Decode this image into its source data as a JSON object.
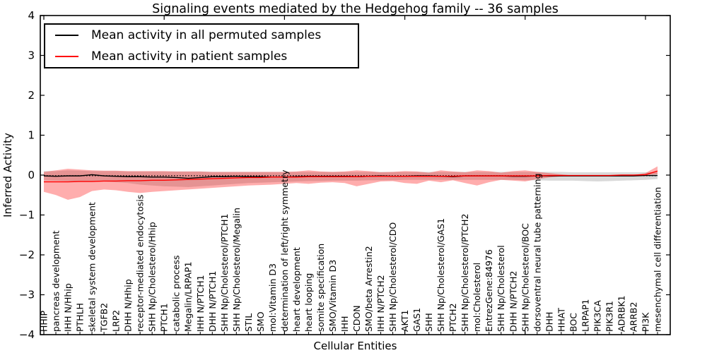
{
  "title": "Signaling events mediated by the Hedgehog family -- 36 samples",
  "legend": {
    "position": "upper left",
    "items": [
      {
        "label": "Mean activity in all permuted samples",
        "color": "#000000"
      },
      {
        "label": "Mean activity in patient samples",
        "color": "#ff0000"
      }
    ]
  },
  "colors": {
    "permuted_line": "#000000",
    "patient_line": "#ff0000",
    "permuted_band": "rgba(128,128,128,0.30)",
    "patient_band": "rgba(255,0,0,0.32)",
    "frame": "#000000"
  },
  "chart_data": {
    "type": "line",
    "title": "Signaling events mediated by the Hedgehog family -- 36 samples",
    "xlabel": "Cellular Entities",
    "ylabel": "Inferred Activity",
    "ylim": [
      -4,
      4
    ],
    "yticks": [
      4,
      3,
      2,
      1,
      0,
      -1,
      -2,
      -3,
      -4
    ],
    "grid": false,
    "legend_position": "upper left",
    "categories": [
      "HHIP",
      "pancreas development",
      "IHH N/Hhip",
      "PTHLH",
      "skeletal system development",
      "TGFB2",
      "LRP2",
      "DHH N/Hhip",
      "receptor-mediated endocytosis",
      "SHH Np/Cholesterol/Hhip",
      "PTCH1",
      "catabolic process",
      "Megalin/LRPAP1",
      "IHH N/PTCH1",
      "DHH N/PTCH1",
      "SHH Np/Cholesterol/PTCH1",
      "SHH Np/Cholesterol/Megalin",
      "STIL",
      "SMO",
      "mol:Vitamin D3",
      "determination of left/right symmetry",
      "heart development",
      "heart looping",
      "somite specification",
      "SMO/Vitamin D3",
      "IHH",
      "CDON",
      "SMO/beta Arrestin2",
      "IHH N/PTCH2",
      "SHH Np/Cholesterol/CDO",
      "AKT1",
      "GAS1",
      "SHH",
      "SHH Np/Cholesterol/GAS1",
      "PTCH2",
      "SHH Np/Cholesterol/PTCH2",
      "mol:Cholesterol",
      "EntrezGene:84976",
      "SHH Np/Cholesterol",
      "DHH N/PTCH2",
      "SHH Np/Cholesterol/BOC",
      "dorsoventral neural tube patterning",
      "DHH",
      "HHAT",
      "BOC",
      "LRPAP1",
      "PIK3CA",
      "PIK3R1",
      "ADRBK1",
      "ARRB2",
      "PI3K",
      "mesenchymal cell differentiation"
    ],
    "series": [
      {
        "name": "Mean activity in all permuted samples",
        "color": "#000000",
        "style": "solid",
        "values": [
          -0.02,
          -0.03,
          -0.02,
          -0.02,
          0.01,
          -0.02,
          -0.03,
          -0.04,
          -0.04,
          -0.05,
          -0.05,
          -0.06,
          -0.08,
          -0.06,
          -0.04,
          -0.04,
          -0.03,
          -0.04,
          -0.04,
          -0.05,
          -0.05,
          -0.04,
          -0.03,
          -0.03,
          -0.03,
          -0.03,
          -0.04,
          -0.03,
          -0.02,
          -0.03,
          -0.03,
          -0.02,
          -0.02,
          -0.03,
          -0.04,
          -0.02,
          -0.02,
          -0.02,
          -0.02,
          -0.03,
          -0.03,
          -0.02,
          -0.02,
          -0.02,
          -0.02,
          -0.02,
          -0.02,
          -0.02,
          -0.02,
          -0.02,
          -0.01,
          -0.01
        ]
      },
      {
        "name": "permuted mean dotted overlay",
        "color": "#000000",
        "style": "dotted",
        "constant": -0.015
      },
      {
        "name": "Mean activity in patient samples",
        "color": "#ff0000",
        "style": "solid",
        "values": [
          -0.17,
          -0.17,
          -0.17,
          -0.16,
          -0.16,
          -0.15,
          -0.15,
          -0.14,
          -0.14,
          -0.13,
          -0.13,
          -0.12,
          -0.11,
          -0.1,
          -0.09,
          -0.08,
          -0.07,
          -0.06,
          -0.06,
          -0.05,
          -0.05,
          -0.05,
          -0.04,
          -0.04,
          -0.04,
          -0.04,
          -0.04,
          -0.03,
          -0.03,
          -0.03,
          -0.03,
          -0.03,
          -0.03,
          -0.03,
          -0.03,
          -0.02,
          -0.02,
          -0.02,
          -0.02,
          -0.02,
          -0.02,
          -0.02,
          -0.01,
          -0.01,
          -0.01,
          -0.01,
          -0.01,
          -0.01,
          0.0,
          0.0,
          0.01,
          0.1
        ]
      }
    ],
    "bands": [
      {
        "name": "permuted-std",
        "color": "rgba(128,128,128,0.30)",
        "upper": [
          0.1,
          0.1,
          0.12,
          0.11,
          0.1,
          0.1,
          0.1,
          0.09,
          0.09,
          0.09,
          0.09,
          0.09,
          0.09,
          0.09,
          0.08,
          0.08,
          0.08,
          0.08,
          0.08,
          0.08,
          0.08,
          0.08,
          0.08,
          0.08,
          0.08,
          0.08,
          0.08,
          0.08,
          0.08,
          0.08,
          0.08,
          0.08,
          0.08,
          0.08,
          0.08,
          0.08,
          0.08,
          0.08,
          0.08,
          0.08,
          0.08,
          0.08,
          0.08,
          0.08,
          0.07,
          0.07,
          0.07,
          0.07,
          0.07,
          0.07,
          0.07,
          0.07
        ],
        "lower": [
          -0.13,
          -0.14,
          -0.15,
          -0.16,
          -0.15,
          -0.16,
          -0.18,
          -0.2,
          -0.24,
          -0.26,
          -0.28,
          -0.29,
          -0.3,
          -0.28,
          -0.26,
          -0.24,
          -0.22,
          -0.2,
          -0.19,
          -0.18,
          -0.17,
          -0.16,
          -0.15,
          -0.15,
          -0.14,
          -0.14,
          -0.14,
          -0.13,
          -0.13,
          -0.13,
          -0.12,
          -0.12,
          -0.12,
          -0.12,
          -0.12,
          -0.12,
          -0.12,
          -0.12,
          -0.12,
          -0.12,
          -0.13,
          -0.13,
          -0.14,
          -0.14,
          -0.14,
          -0.15,
          -0.16,
          -0.15,
          -0.14,
          -0.13,
          -0.12,
          -0.1
        ]
      },
      {
        "name": "patient-std",
        "color": "rgba(255,0,0,0.32)",
        "upper": [
          0.08,
          0.12,
          0.16,
          0.14,
          0.12,
          0.11,
          0.11,
          0.1,
          0.1,
          0.1,
          0.1,
          0.09,
          0.09,
          0.09,
          0.08,
          0.08,
          0.08,
          0.08,
          0.08,
          0.08,
          0.08,
          0.09,
          0.12,
          0.09,
          0.08,
          0.09,
          0.12,
          0.1,
          0.07,
          0.08,
          0.1,
          0.09,
          0.06,
          0.12,
          0.09,
          0.07,
          0.12,
          0.1,
          0.06,
          0.1,
          0.12,
          0.08,
          0.05,
          0.02,
          -0.01,
          -0.01,
          -0.01,
          -0.01,
          0.0,
          0.0,
          0.05,
          0.22
        ],
        "lower": [
          -0.42,
          -0.5,
          -0.62,
          -0.55,
          -0.4,
          -0.36,
          -0.38,
          -0.42,
          -0.45,
          -0.42,
          -0.4,
          -0.38,
          -0.36,
          -0.34,
          -0.32,
          -0.3,
          -0.28,
          -0.26,
          -0.25,
          -0.24,
          -0.22,
          -0.2,
          -0.22,
          -0.19,
          -0.18,
          -0.2,
          -0.28,
          -0.22,
          -0.16,
          -0.15,
          -0.2,
          -0.22,
          -0.14,
          -0.18,
          -0.13,
          -0.2,
          -0.26,
          -0.18,
          -0.12,
          -0.14,
          -0.16,
          -0.1,
          -0.06,
          -0.03,
          -0.01,
          -0.01,
          -0.01,
          -0.01,
          0.0,
          0.0,
          0.0,
          0.02
        ]
      }
    ],
    "major_xtick_indices": [
      0,
      10,
      20,
      30,
      40,
      50
    ]
  }
}
